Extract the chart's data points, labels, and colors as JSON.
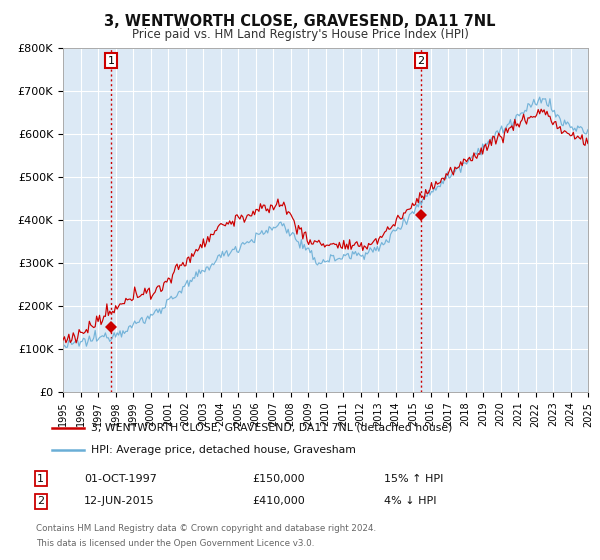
{
  "title": "3, WENTWORTH CLOSE, GRAVESEND, DA11 7NL",
  "subtitle": "Price paid vs. HM Land Registry's House Price Index (HPI)",
  "legend_line1": "3, WENTWORTH CLOSE, GRAVESEND, DA11 7NL (detached house)",
  "legend_line2": "HPI: Average price, detached house, Gravesham",
  "sale1_date": "01-OCT-1997",
  "sale1_price": "£150,000",
  "sale1_hpi": "15% ↑ HPI",
  "sale1_year": 1997.75,
  "sale1_value": 150000,
  "sale2_date": "12-JUN-2015",
  "sale2_price": "£410,000",
  "sale2_hpi": "4% ↓ HPI",
  "sale2_year": 2015.45,
  "sale2_value": 410000,
  "hpi_color": "#6aaed6",
  "price_color": "#cc0000",
  "background_color": "#ffffff",
  "plot_bg_color": "#dce9f5",
  "grid_color": "#ffffff",
  "ylim": [
    0,
    800000
  ],
  "xlim_start": 1995,
  "xlim_end": 2025,
  "footer": "Contains HM Land Registry data © Crown copyright and database right 2024.\nThis data is licensed under the Open Government Licence v3.0."
}
